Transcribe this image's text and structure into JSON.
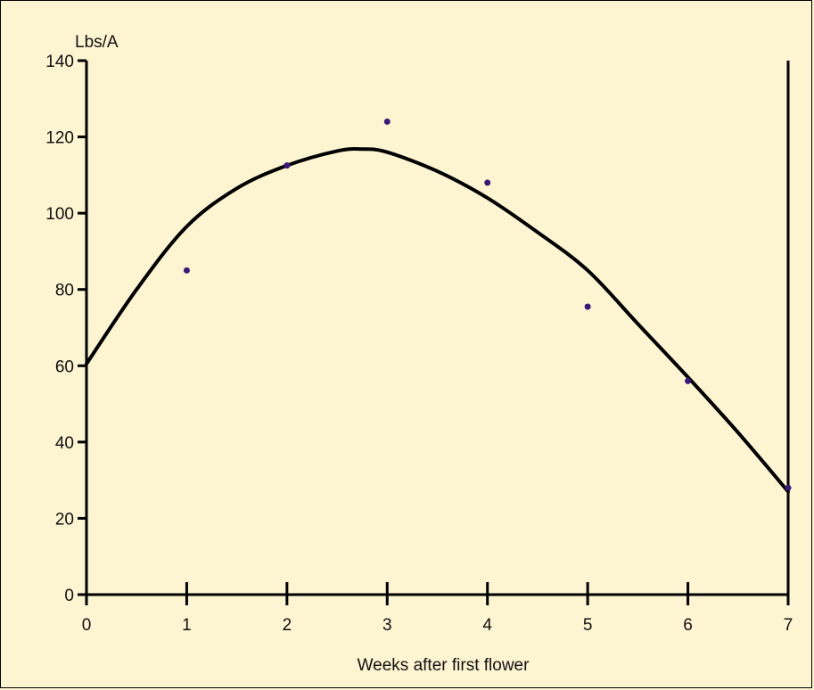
{
  "chart_data": {
    "type": "scatter",
    "title": "",
    "xlabel": "Weeks after first flower",
    "ylabel": "Lbs/A",
    "xlim": [
      0,
      7
    ],
    "ylim": [
      0,
      140
    ],
    "x_ticks": [
      0,
      1,
      2,
      3,
      4,
      5,
      6,
      7
    ],
    "y_ticks": [
      0,
      20,
      40,
      60,
      80,
      100,
      120,
      140
    ],
    "grid": false,
    "points": [
      {
        "x": 1,
        "y": 85
      },
      {
        "x": 2,
        "y": 112.5
      },
      {
        "x": 3,
        "y": 124
      },
      {
        "x": 4,
        "y": 108
      },
      {
        "x": 5,
        "y": 75.5
      },
      {
        "x": 6,
        "y": 56
      },
      {
        "x": 7,
        "y": 28
      }
    ],
    "fit_curve": [
      {
        "x": 0,
        "y": 60.5
      },
      {
        "x": 0.5,
        "y": 80
      },
      {
        "x": 1,
        "y": 96.5
      },
      {
        "x": 1.5,
        "y": 106.5
      },
      {
        "x": 2,
        "y": 112.5
      },
      {
        "x": 2.5,
        "y": 116.3
      },
      {
        "x": 2.75,
        "y": 116.8
      },
      {
        "x": 3,
        "y": 116
      },
      {
        "x": 3.5,
        "y": 111
      },
      {
        "x": 4,
        "y": 104
      },
      {
        "x": 4.5,
        "y": 95
      },
      {
        "x": 5,
        "y": 85
      },
      {
        "x": 5.5,
        "y": 71
      },
      {
        "x": 6,
        "y": 57
      },
      {
        "x": 6.5,
        "y": 42.5
      },
      {
        "x": 7,
        "y": 27
      }
    ],
    "colors": {
      "background": "#fdf4d2",
      "points": "#3a1878",
      "curve": "#000000",
      "axes": "#000000"
    }
  }
}
